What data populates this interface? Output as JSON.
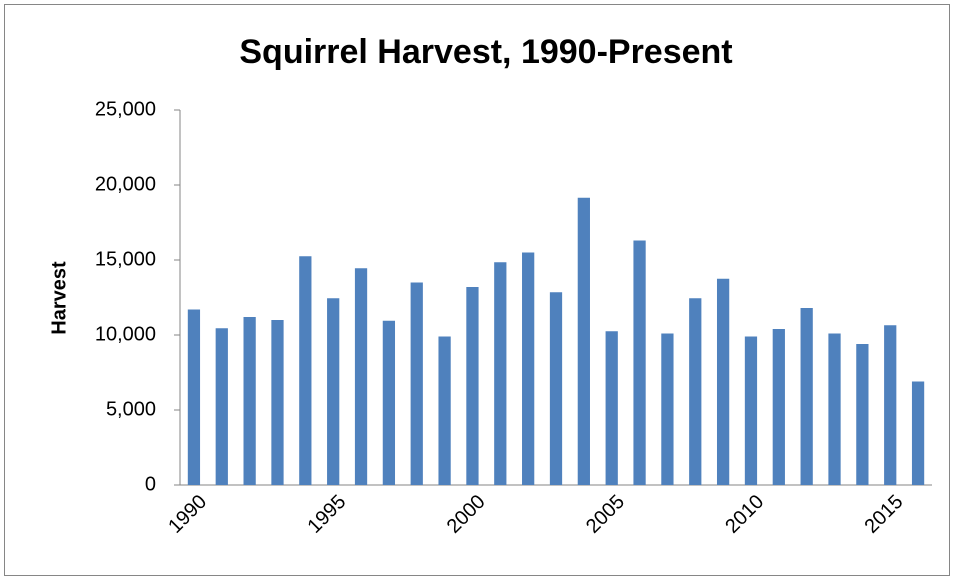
{
  "chart_data": {
    "type": "bar",
    "title": "Squirrel Harvest, 1990-Present",
    "y_label": "Harvest",
    "categories": [
      "1990",
      null,
      null,
      null,
      null,
      "1995",
      null,
      null,
      null,
      null,
      "2000",
      null,
      null,
      null,
      null,
      "2005",
      null,
      null,
      null,
      null,
      "2010",
      null,
      null,
      null,
      null,
      "2015",
      null
    ],
    "values": [
      11700,
      10450,
      11200,
      11000,
      15250,
      12450,
      14450,
      10950,
      13500,
      9900,
      13200,
      14850,
      15500,
      12850,
      19150,
      10250,
      16300,
      10100,
      12450,
      13750,
      9900,
      10400,
      11800,
      10100,
      9400,
      10650,
      6900
    ],
    "color": "#4f81bd",
    "ylim": [
      0,
      25000
    ],
    "yticks": [
      0,
      {
        "value": 5000,
        "label": "5,000"
      },
      {
        "value": 10000,
        "label": "10,000"
      },
      {
        "value": 15000,
        "label": "15,000"
      },
      {
        "value": 20000,
        "label": "20,000"
      },
      {
        "value": 25000,
        "label": "25,000"
      }
    ],
    "grid": false
  }
}
